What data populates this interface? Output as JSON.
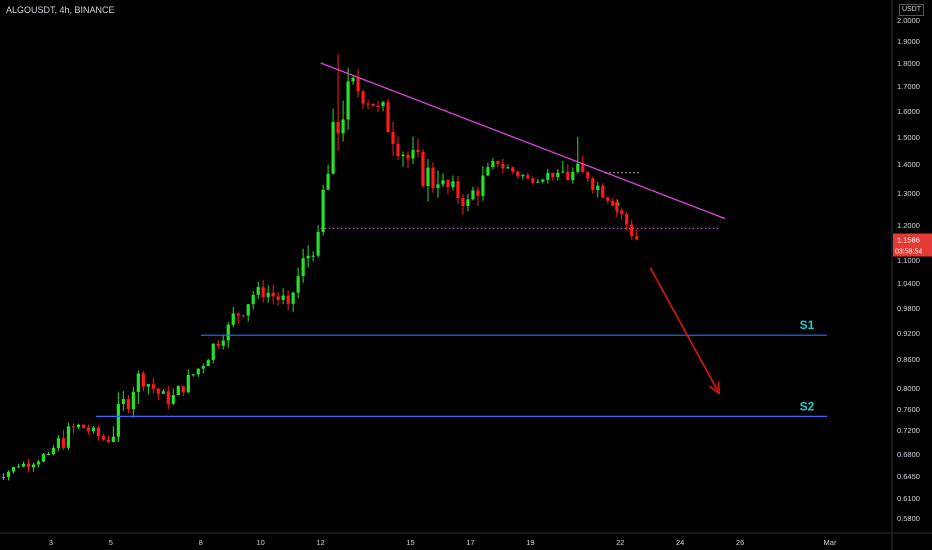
{
  "header": {
    "symbol_info": "ALGOUSDT, 4h, BINANCE",
    "currency": "USDT"
  },
  "y_axis": {
    "ticks": [
      {
        "value": 2.0,
        "label": "2.0000"
      },
      {
        "value": 1.9,
        "label": "1.9000"
      },
      {
        "value": 1.8,
        "label": "1.8000"
      },
      {
        "value": 1.7,
        "label": "1.7000"
      },
      {
        "value": 1.6,
        "label": "1.6000"
      },
      {
        "value": 1.5,
        "label": "1.5000"
      },
      {
        "value": 1.4,
        "label": "1.4000"
      },
      {
        "value": 1.3,
        "label": "1.3000"
      },
      {
        "value": 1.2,
        "label": "1.2000"
      },
      {
        "value": 1.1,
        "label": "1.1000"
      },
      {
        "value": 1.04,
        "label": "1.0400"
      },
      {
        "value": 0.98,
        "label": "0.9800"
      },
      {
        "value": 0.92,
        "label": "0.9200"
      },
      {
        "value": 0.86,
        "label": "0.8600"
      },
      {
        "value": 0.8,
        "label": "0.8000"
      },
      {
        "value": 0.76,
        "label": "0.7600"
      },
      {
        "value": 0.72,
        "label": "0.7200"
      },
      {
        "value": 0.68,
        "label": "0.6800"
      },
      {
        "value": 0.645,
        "label": "0.6450"
      },
      {
        "value": 0.61,
        "label": "0.6100"
      },
      {
        "value": 0.58,
        "label": "0.5800"
      }
    ],
    "price_tag": {
      "value": 1.1586,
      "label": "1.1586"
    },
    "countdown": "03:58:54"
  },
  "x_axis": {
    "ticks": [
      {
        "label": "3",
        "day": 3
      },
      {
        "label": "5",
        "day": 5
      },
      {
        "label": "8",
        "day": 8
      },
      {
        "label": "10",
        "day": 10
      },
      {
        "label": "12",
        "day": 12
      },
      {
        "label": "15",
        "day": 15
      },
      {
        "label": "17",
        "day": 17
      },
      {
        "label": "19",
        "day": 19
      },
      {
        "label": "22",
        "day": 22
      },
      {
        "label": "24",
        "day": 24
      },
      {
        "label": "26",
        "day": 26
      },
      {
        "label": "Mar",
        "day": 29
      }
    ]
  },
  "chart_data": {
    "type": "candlestick",
    "symbol": "ALGOUSDT",
    "interval": "4h",
    "exchange": "BINANCE",
    "colors": {
      "up": "#26e02a",
      "down": "#ff1a1a",
      "trendline": "#e040e0",
      "support": "#2f6cff",
      "arrow": "#e01414",
      "support_label": "#21c7d8",
      "price_tag": "#e53935",
      "background": "#000000"
    },
    "series": [
      {
        "name": "ALGOUSDT",
        "ohlc_daily": [
          {
            "day": 1.5,
            "o": 0.64,
            "h": 0.67,
            "l": 0.625,
            "c": 0.66
          },
          {
            "day": 2.5,
            "o": 0.66,
            "h": 0.7,
            "l": 0.65,
            "c": 0.68
          },
          {
            "day": 3.5,
            "o": 0.68,
            "h": 0.77,
            "l": 0.67,
            "c": 0.73
          },
          {
            "day": 4.5,
            "o": 0.73,
            "h": 0.74,
            "l": 0.68,
            "c": 0.7
          },
          {
            "day": 5.5,
            "o": 0.7,
            "h": 0.86,
            "l": 0.7,
            "c": 0.83
          },
          {
            "day": 6.5,
            "o": 0.83,
            "h": 0.84,
            "l": 0.74,
            "c": 0.77
          },
          {
            "day": 7.5,
            "o": 0.77,
            "h": 0.85,
            "l": 0.76,
            "c": 0.84
          },
          {
            "day": 8.5,
            "o": 0.84,
            "h": 0.95,
            "l": 0.83,
            "c": 0.94
          },
          {
            "day": 9.5,
            "o": 0.94,
            "h": 1.09,
            "l": 0.93,
            "c": 1.03
          },
          {
            "day": 10.5,
            "o": 1.03,
            "h": 1.05,
            "l": 0.92,
            "c": 0.99
          },
          {
            "day": 11.5,
            "o": 0.99,
            "h": 1.2,
            "l": 0.97,
            "c": 1.18
          },
          {
            "day": 12.5,
            "o": 1.18,
            "h": 1.84,
            "l": 1.17,
            "c": 1.72
          },
          {
            "day": 13.5,
            "o": 1.72,
            "h": 1.78,
            "l": 1.5,
            "c": 1.62
          },
          {
            "day": 14.5,
            "o": 1.62,
            "h": 1.65,
            "l": 1.3,
            "c": 1.42
          },
          {
            "day": 15.5,
            "o": 1.42,
            "h": 1.55,
            "l": 1.2,
            "c": 1.33
          },
          {
            "day": 16.5,
            "o": 1.33,
            "h": 1.42,
            "l": 1.2,
            "c": 1.28
          },
          {
            "day": 17.5,
            "o": 1.28,
            "h": 1.45,
            "l": 1.22,
            "c": 1.4
          },
          {
            "day": 18.5,
            "o": 1.4,
            "h": 1.44,
            "l": 1.31,
            "c": 1.35
          },
          {
            "day": 19.5,
            "o": 1.35,
            "h": 1.41,
            "l": 1.31,
            "c": 1.37
          },
          {
            "day": 20.5,
            "o": 1.37,
            "h": 1.5,
            "l": 1.22,
            "c": 1.35
          },
          {
            "day": 21.5,
            "o": 1.35,
            "h": 1.37,
            "l": 1.2,
            "c": 1.27
          },
          {
            "day": 22.3,
            "o": 1.27,
            "h": 1.29,
            "l": 1.14,
            "c": 1.1586
          }
        ]
      }
    ],
    "annotations": {
      "descending_trendline": {
        "from": {
          "day": 12,
          "price": 1.8
        },
        "to": {
          "day": 25.5,
          "price": 1.22
        }
      },
      "neckline": {
        "from": {
          "day": 12,
          "price": 1.19
        },
        "to": {
          "day": 25.3,
          "price": 1.19
        },
        "style": "dotted"
      },
      "small_resistance": {
        "from": {
          "day": 21.5,
          "price": 1.37
        },
        "to": {
          "day": 22.7,
          "price": 1.37
        },
        "style": "dotted"
      },
      "projection_arrow": {
        "from": {
          "day": 23,
          "price": 1.08
        },
        "to": {
          "day": 25.3,
          "price": 0.79
        }
      },
      "supports": [
        {
          "label": "S1",
          "price": 0.915,
          "from_day": 8,
          "to_day": 28.9
        },
        {
          "label": "S2",
          "price": 0.746,
          "from_day": 4.5,
          "to_day": 28.9
        }
      ]
    },
    "ylim": [
      0.58,
      2.0
    ],
    "xlim_days": [
      1.3,
      29.6
    ]
  }
}
